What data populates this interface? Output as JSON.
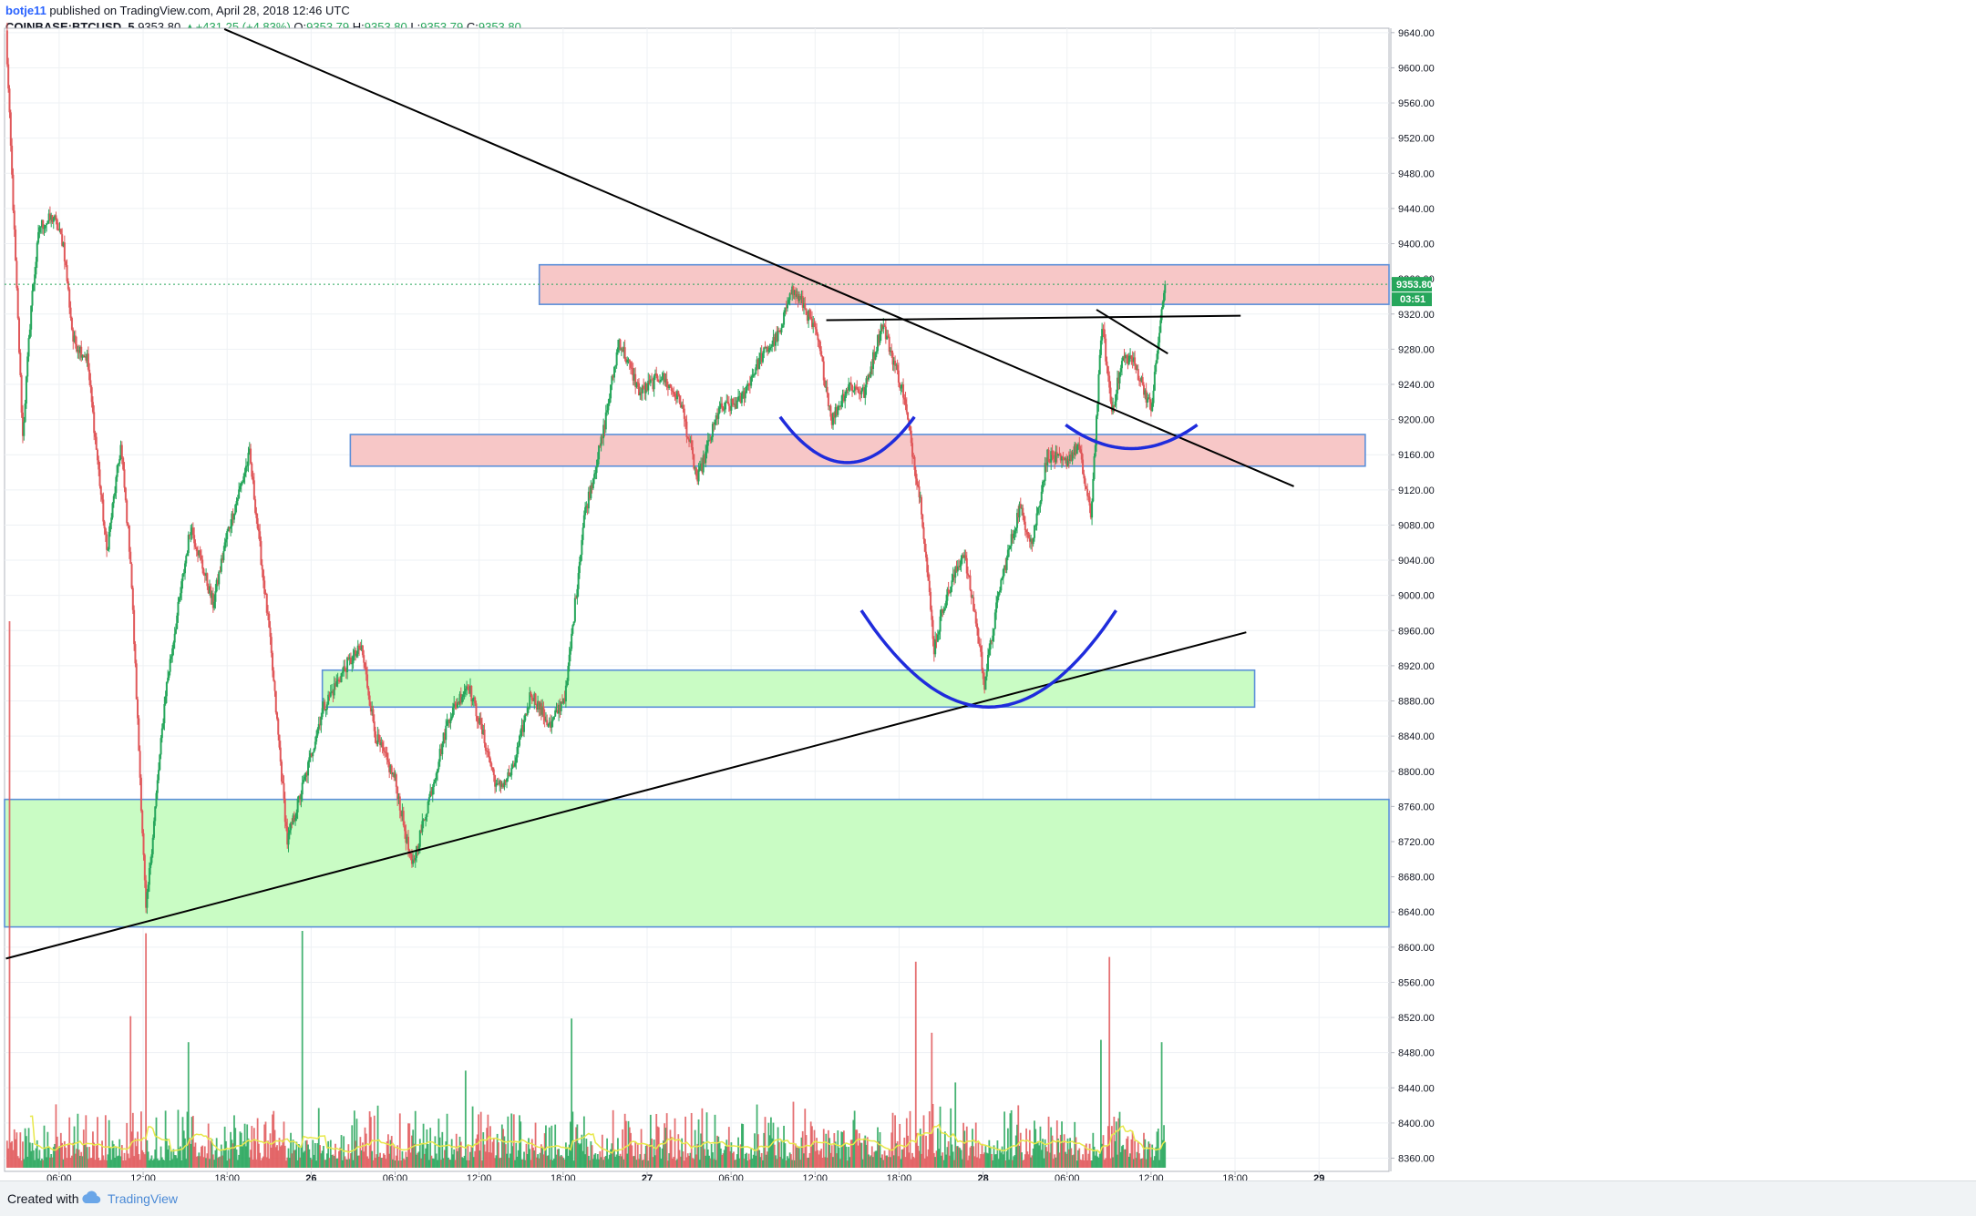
{
  "header": {
    "author": "botje11",
    "published": "published on TradingView.com, April 28, 2018 12:46 UTC",
    "symbol": "COINBASE:BTCUSD, 5",
    "last": "9353.80",
    "change": "+431.25 (+4.83%)",
    "o_label": "O:",
    "o_value": "9353.79",
    "h_label": "H:",
    "h_value": "9353.80",
    "l_label": "L:",
    "l_value": "9353.79",
    "c_label": "C:",
    "c_value": "9353.80"
  },
  "footer": {
    "created_with": "Created with",
    "brand": "TradingView"
  },
  "colors": {
    "up": "#26a65b",
    "down": "#e0585a",
    "pink_zone": "#f7c7c7",
    "green_zone": "#c9fcc4",
    "zone_border": "#5b8fd9",
    "arc": "#1f2cdc",
    "trendline": "#000000",
    "volume_ma": "#e8e84a"
  },
  "chart_data": {
    "type": "candlestick",
    "symbol": "COINBASE:BTCUSD",
    "interval": "5",
    "y_ticks": [
      9640,
      9600,
      9560,
      9520,
      9480,
      9440,
      9400,
      9360,
      9320,
      9280,
      9240,
      9200,
      9160,
      9120,
      9080,
      9040,
      9000,
      8960,
      8920,
      8880,
      8840,
      8800,
      8760,
      8720,
      8680,
      8640,
      8600,
      8560,
      8520,
      8480,
      8440,
      8400,
      8360
    ],
    "ylim": [
      8345,
      9645
    ],
    "x_ticks": [
      {
        "t": 6,
        "label": "06:00"
      },
      {
        "t": 12,
        "label": "12:00"
      },
      {
        "t": 18,
        "label": "18:00"
      },
      {
        "t": 24,
        "label": "26"
      },
      {
        "t": 30,
        "label": "06:00"
      },
      {
        "t": 36,
        "label": "12:00"
      },
      {
        "t": 42,
        "label": "18:00"
      },
      {
        "t": 48,
        "label": "27"
      },
      {
        "t": 54,
        "label": "06:00"
      },
      {
        "t": 60,
        "label": "12:00"
      },
      {
        "t": 66,
        "label": "18:00"
      },
      {
        "t": 72,
        "label": "28"
      },
      {
        "t": 78,
        "label": "06:00"
      },
      {
        "t": 84,
        "label": "12:00"
      },
      {
        "t": 90,
        "label": "18:00"
      },
      {
        "t": 96,
        "label": "29"
      }
    ],
    "xlim": [
      2.1,
      101.0
    ],
    "price_label": "9353.80",
    "countdown_label": "03:51",
    "last_price": 9353.8,
    "anchors": [
      [
        2.2,
        9640
      ],
      [
        3.4,
        9180
      ],
      [
        4.0,
        9330
      ],
      [
        4.6,
        9420
      ],
      [
        5.6,
        9430
      ],
      [
        6.3,
        9400
      ],
      [
        7.0,
        9290
      ],
      [
        8.0,
        9270
      ],
      [
        9.4,
        9050
      ],
      [
        10.4,
        9170
      ],
      [
        11.1,
        9040
      ],
      [
        12.2,
        8640
      ],
      [
        13.6,
        8890
      ],
      [
        15.4,
        9080
      ],
      [
        17.0,
        8990
      ],
      [
        18.0,
        9070
      ],
      [
        19.6,
        9160
      ],
      [
        21.0,
        8960
      ],
      [
        22.3,
        8720
      ],
      [
        23.7,
        8800
      ],
      [
        24.8,
        8870
      ],
      [
        26.5,
        8920
      ],
      [
        27.6,
        8940
      ],
      [
        28.6,
        8840
      ],
      [
        30.0,
        8790
      ],
      [
        31.2,
        8690
      ],
      [
        32.6,
        8780
      ],
      [
        33.8,
        8860
      ],
      [
        35.2,
        8900
      ],
      [
        36.3,
        8840
      ],
      [
        37.3,
        8780
      ],
      [
        38.4,
        8800
      ],
      [
        39.7,
        8890
      ],
      [
        41.1,
        8850
      ],
      [
        42.2,
        8890
      ],
      [
        43.5,
        9090
      ],
      [
        44.8,
        9180
      ],
      [
        46.0,
        9290
      ],
      [
        47.5,
        9230
      ],
      [
        49.0,
        9250
      ],
      [
        50.4,
        9220
      ],
      [
        51.6,
        9130
      ],
      [
        53.1,
        9210
      ],
      [
        54.6,
        9220
      ],
      [
        56.1,
        9270
      ],
      [
        57.6,
        9300
      ],
      [
        58.2,
        9350
      ],
      [
        59.2,
        9330
      ],
      [
        60.2,
        9290
      ],
      [
        61.2,
        9200
      ],
      [
        62.4,
        9240
      ],
      [
        63.5,
        9230
      ],
      [
        64.8,
        9310
      ],
      [
        66.3,
        9230
      ],
      [
        67.6,
        9100
      ],
      [
        68.5,
        8940
      ],
      [
        69.2,
        8990
      ],
      [
        70.6,
        9050
      ],
      [
        71.4,
        8980
      ],
      [
        72.1,
        8900
      ],
      [
        73.2,
        9010
      ],
      [
        74.6,
        9100
      ],
      [
        75.5,
        9060
      ],
      [
        76.6,
        9160
      ],
      [
        77.8,
        9150
      ],
      [
        78.8,
        9170
      ],
      [
        79.7,
        9090
      ],
      [
        80.5,
        9310
      ],
      [
        81.2,
        9210
      ],
      [
        82.0,
        9270
      ],
      [
        82.6,
        9270
      ],
      [
        83.4,
        9240
      ],
      [
        84.0,
        9210
      ],
      [
        84.6,
        9300
      ],
      [
        85.0,
        9353.8
      ]
    ],
    "volume_spikes": [
      {
        "t": 2.5,
        "v": 2.45
      },
      {
        "t": 11.1,
        "v": 0.64
      },
      {
        "t": 12.2,
        "v": 0.99
      },
      {
        "t": 15.2,
        "v": 0.53
      },
      {
        "t": 23.4,
        "v": 1.0
      },
      {
        "t": 35.0,
        "v": 0.41
      },
      {
        "t": 42.6,
        "v": 0.63
      },
      {
        "t": 67.2,
        "v": 0.87
      },
      {
        "t": 68.3,
        "v": 0.57
      },
      {
        "t": 70.0,
        "v": 0.36
      },
      {
        "t": 80.4,
        "v": 0.54
      },
      {
        "t": 81.0,
        "v": 0.89
      },
      {
        "t": 84.8,
        "v": 0.53
      }
    ],
    "zones": [
      {
        "name": "upper-resistance-zone",
        "kind": "pink",
        "t1": 40.3,
        "t2": 101.0,
        "p1": 9331,
        "p2": 9376
      },
      {
        "name": "mid-resistance-zone",
        "kind": "pink",
        "t1": 26.8,
        "t2": 99.3,
        "p1": 9147,
        "p2": 9183
      },
      {
        "name": "mid-support-zone",
        "kind": "green",
        "t1": 24.8,
        "t2": 91.4,
        "p1": 8873,
        "p2": 8915
      },
      {
        "name": "low-support-zone",
        "kind": "green",
        "t1": 2.1,
        "t2": 101.0,
        "p1": 8623,
        "p2": 8768
      }
    ],
    "trendlines": [
      {
        "name": "descending-trendline",
        "t1": 17.8,
        "p1": 9644,
        "t2": 94.2,
        "p2": 9124
      },
      {
        "name": "ascending-trendline",
        "t1": 2.2,
        "p1": 8587,
        "t2": 90.8,
        "p2": 8958
      },
      {
        "name": "neckline",
        "t1": 60.8,
        "p1": 9313,
        "t2": 90.4,
        "p2": 9318
      },
      {
        "name": "short-falling-line",
        "t1": 80.1,
        "p1": 9325,
        "t2": 85.2,
        "p2": 9275
      }
    ],
    "arcs": [
      {
        "name": "shoulder-arc-left",
        "tc": 62.3,
        "p_top": 9203,
        "p_bottom": 9151,
        "half_width": 4.8
      },
      {
        "name": "head-arc",
        "tc": 72.4,
        "p_top": 8983,
        "p_bottom": 8873,
        "half_width": 9.1
      },
      {
        "name": "shoulder-arc-right",
        "tc": 82.6,
        "p_top": 9194,
        "p_bottom": 9167,
        "half_width": 4.7
      }
    ]
  }
}
